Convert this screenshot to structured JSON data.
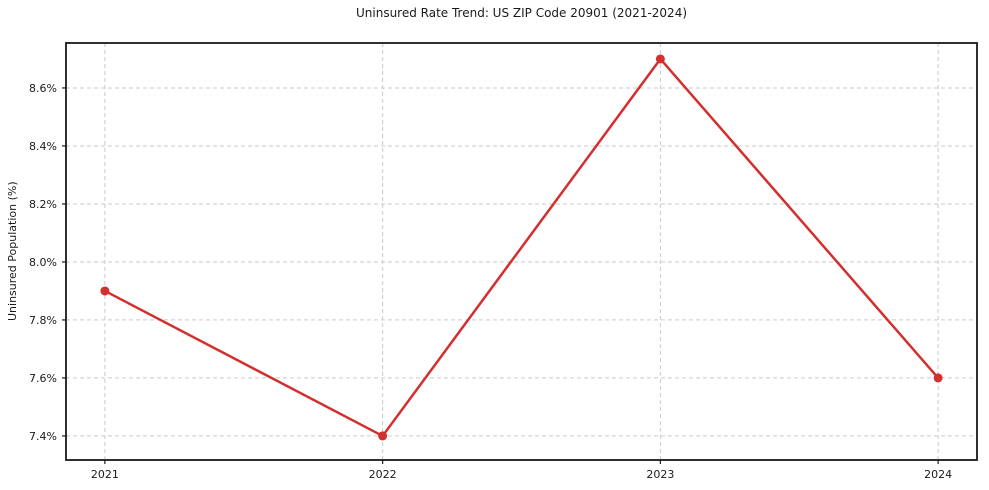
{
  "style": {
    "background": "#ffffff",
    "line_color": "#d32f2f",
    "grid_color": "#c9c9c9",
    "axis_color": "#1a1a1a",
    "text_color": "#1a1a1a"
  },
  "chart_data": {
    "type": "line",
    "title": "Uninsured Rate Trend: US ZIP Code 20901 (2021-2024)",
    "xlabel": "",
    "ylabel": "Uninsured Population (%)",
    "x": [
      2021,
      2022,
      2023,
      2024
    ],
    "x_tick_labels": [
      "2021",
      "2022",
      "2023",
      "2024"
    ],
    "series": [
      {
        "values": [
          7.9,
          7.4,
          8.7,
          7.6
        ],
        "color": "#d32f2f",
        "marker": "circle"
      }
    ],
    "y_ticks": [
      7.4,
      7.6,
      7.8,
      8.0,
      8.2,
      8.4,
      8.6
    ],
    "y_tick_labels": [
      "7.4%",
      "7.6%",
      "7.8%",
      "8.0%",
      "8.2%",
      "8.4%",
      "8.6%"
    ],
    "xlim": [
      2020.86,
      2024.14
    ],
    "ylim": [
      7.317,
      8.755
    ],
    "grid": true,
    "grid_style": "dashed",
    "legend_position": "none"
  }
}
